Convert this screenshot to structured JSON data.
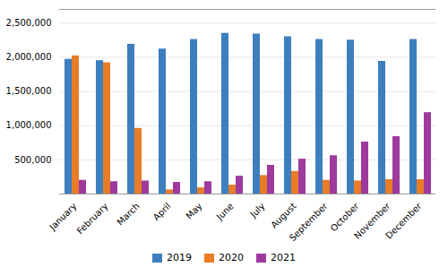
{
  "chart_data": {
    "type": "bar",
    "categories": [
      "January",
      "February",
      "March",
      "April",
      "May",
      "June",
      "July",
      "August",
      "September",
      "October",
      "November",
      "December"
    ],
    "series": [
      {
        "name": "2019",
        "color": "#3d7ebf",
        "values": [
          1970000,
          1950000,
          2190000,
          2120000,
          2260000,
          2350000,
          2340000,
          2300000,
          2260000,
          2250000,
          1940000,
          2260000
        ]
      },
      {
        "name": "2020",
        "color": "#e87c27",
        "values": [
          2020000,
          1920000,
          960000,
          60000,
          90000,
          130000,
          270000,
          330000,
          200000,
          190000,
          210000,
          210000
        ]
      },
      {
        "name": "2021",
        "color": "#9e3a9e",
        "values": [
          200000,
          180000,
          190000,
          170000,
          180000,
          260000,
          420000,
          510000,
          560000,
          760000,
          840000,
          1190000
        ]
      }
    ],
    "ylim": [
      0,
      2700000
    ],
    "yticks": [
      {
        "value": 500000,
        "label": "500,000"
      },
      {
        "value": 1000000,
        "label": "1,000,000"
      },
      {
        "value": 1500000,
        "label": "1,500,000"
      },
      {
        "value": 2000000,
        "label": "2,000,000"
      },
      {
        "value": 2500000,
        "label": "2,500,000"
      }
    ],
    "grid": true,
    "legend": "bottom"
  }
}
